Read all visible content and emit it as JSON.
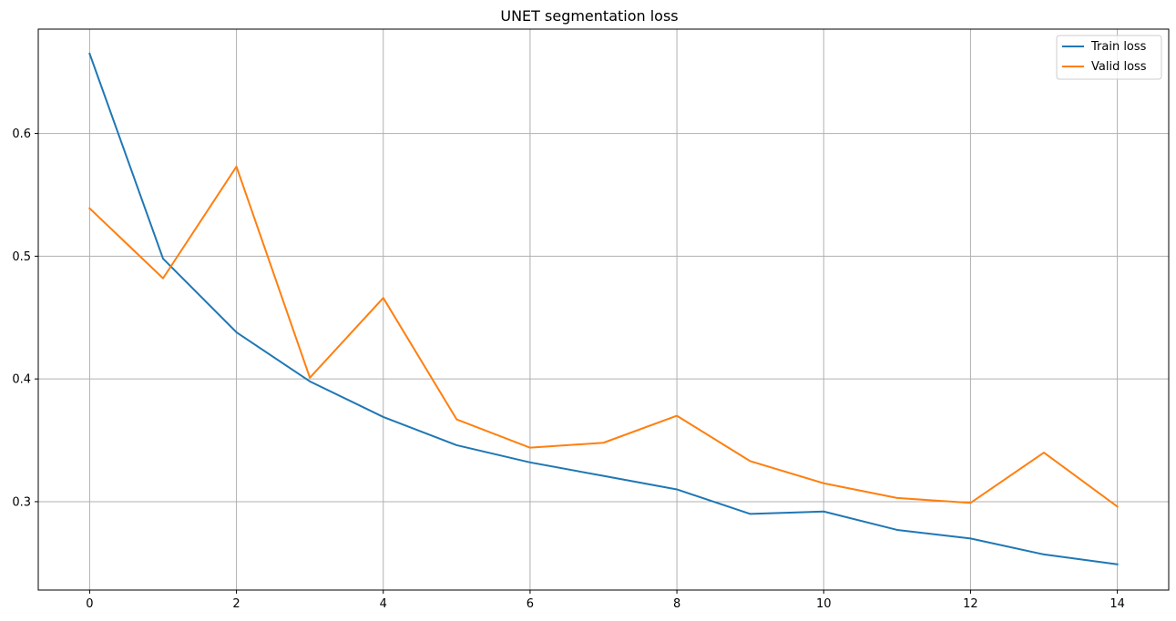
{
  "chart_data": {
    "type": "line",
    "title": "UNET segmentation loss",
    "xlabel": "",
    "ylabel": "",
    "x": [
      0,
      1,
      2,
      3,
      4,
      5,
      6,
      7,
      8,
      9,
      10,
      11,
      12,
      13,
      14
    ],
    "series": [
      {
        "name": "Train loss",
        "color": "#1f77b4",
        "values": [
          0.665,
          0.498,
          0.438,
          0.398,
          0.369,
          0.346,
          0.332,
          0.321,
          0.31,
          0.29,
          0.292,
          0.277,
          0.27,
          0.257,
          0.249
        ]
      },
      {
        "name": "Valid loss",
        "color": "#ff7f0e",
        "values": [
          0.539,
          0.482,
          0.573,
          0.401,
          0.466,
          0.367,
          0.344,
          0.348,
          0.37,
          0.333,
          0.315,
          0.303,
          0.299,
          0.34,
          0.296
        ]
      }
    ],
    "xlim": [
      -0.7,
      14.7
    ],
    "ylim": [
      0.228,
      0.685
    ],
    "xticks": [
      0,
      2,
      4,
      6,
      8,
      10,
      12,
      14
    ],
    "xtick_labels": [
      "0",
      "2",
      "4",
      "6",
      "8",
      "10",
      "12",
      "14"
    ],
    "yticks": [
      0.3,
      0.4,
      0.5,
      0.6
    ],
    "ytick_labels": [
      "0.3",
      "0.4",
      "0.5",
      "0.6"
    ],
    "grid": true,
    "legend_position": "top-right"
  }
}
